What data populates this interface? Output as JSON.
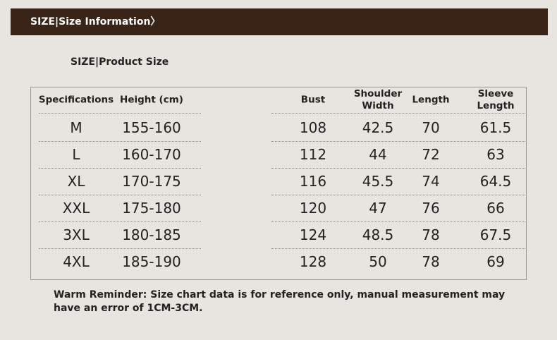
{
  "header": {
    "title": "SIZE|Size Information〉"
  },
  "subtitle": "SIZE|Product Size",
  "table": {
    "columns": [
      "Specifications",
      "Height (cm)",
      "Bust",
      "Shoulder Width",
      "Length",
      "Sleeve Length"
    ],
    "rows": [
      [
        "M",
        "155-160",
        "108",
        "42.5",
        "70",
        "61.5"
      ],
      [
        "L",
        "160-170",
        "112",
        "44",
        "72",
        "63"
      ],
      [
        "XL",
        "170-175",
        "116",
        "45.5",
        "74",
        "64.5"
      ],
      [
        "XXL",
        "175-180",
        "120",
        "47",
        "76",
        "66"
      ],
      [
        "3XL",
        "180-185",
        "124",
        "48.5",
        "78",
        "67.5"
      ],
      [
        "4XL",
        "185-190",
        "128",
        "50",
        "78",
        "69"
      ]
    ]
  },
  "note": "Warm Reminder: Size chart data is for reference only, manual measurement may have an error of 1CM-3CM."
}
